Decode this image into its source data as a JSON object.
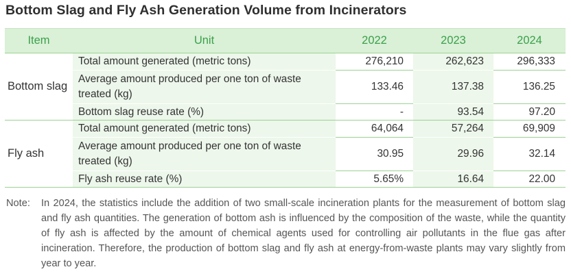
{
  "title": "Bottom Slag and Fly Ash Generation Volume from Incinerators",
  "table": {
    "headers": {
      "item": "Item",
      "unit": "Unit",
      "years": [
        "2022",
        "2023",
        "2024"
      ]
    },
    "groups": [
      {
        "item": "Bottom slag",
        "rows": [
          {
            "unit": "Total amount generated (metric tons)",
            "values": [
              "276,210",
              "262,623",
              "296,333"
            ]
          },
          {
            "unit": "Average amount produced per one ton of waste treated (kg)",
            "values": [
              "133.46",
              "137.38",
              "136.25"
            ]
          },
          {
            "unit": "Bottom slag reuse rate (%)",
            "values": [
              "-",
              "93.54",
              "97.20"
            ]
          }
        ]
      },
      {
        "item": "Fly ash",
        "rows": [
          {
            "unit": "Total amount generated (metric tons)",
            "values": [
              "64,064",
              "57,264",
              "69,909"
            ]
          },
          {
            "unit": "Average amount produced per one ton of waste treated (kg)",
            "values": [
              "30.95",
              "29.96",
              "32.14"
            ]
          },
          {
            "unit": "Fly ash reuse rate (%)",
            "values": [
              "5.65%",
              "16.64",
              "22.00"
            ]
          }
        ]
      }
    ]
  },
  "note": {
    "label": "Note:",
    "text": "In 2024, the statistics include the addition of two small-scale incineration plants for the measurement of bottom slag and fly ash quantities. The generation of bottom ash is influenced by the composition of the waste, while the quantity of fly ash is affected by the amount of chemical agents used for controlling air pollutants in the flue gas after incineration. Therefore, the production of bottom slag and fly ash at energy-from-waste plants may vary slightly from year to year."
  },
  "colors": {
    "header_bg": "#daf0d7",
    "header_text": "#3aa14a",
    "shaded_cell": "#edf7eb",
    "rule": "#9bd293"
  }
}
